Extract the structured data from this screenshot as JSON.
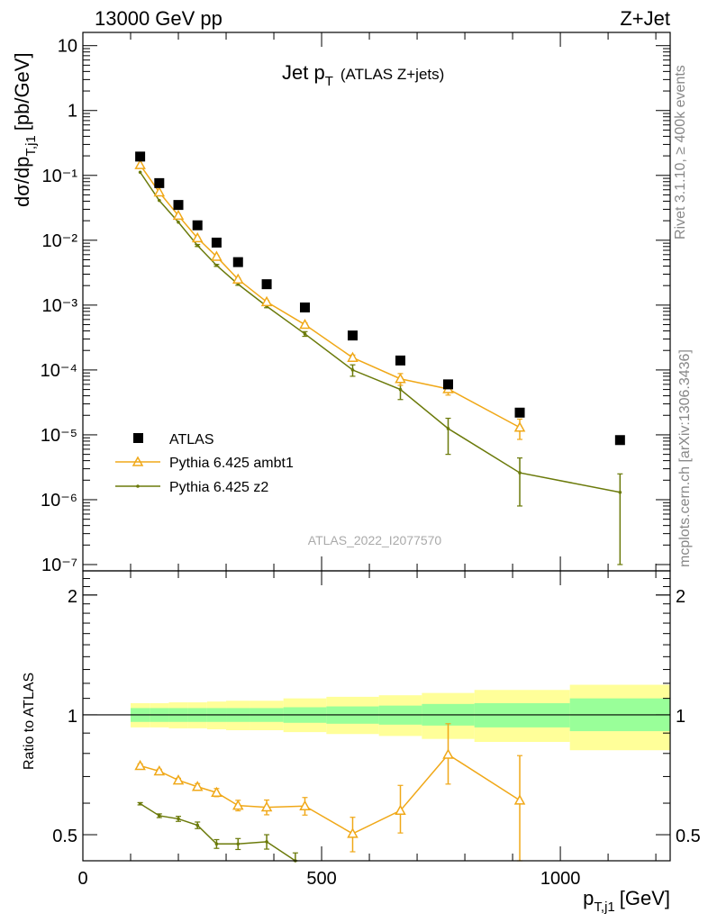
{
  "header": {
    "left": "13000 GeV pp",
    "right": "Z+Jet"
  },
  "plot_title": {
    "main": "Jet p",
    "main_sub": "T",
    "extra": "(ATLAS Z+jets)"
  },
  "side_labels": {
    "rivet": "Rivet 3.1.10, ≥ 400k events",
    "mcplots": "mcplots.cern.ch [arXiv:1306.3436]"
  },
  "analysis_id": "ATLAS_2022_I2077570",
  "legend": [
    {
      "label": "ATLAS",
      "color": "#000000",
      "marker": "square"
    },
    {
      "label": "Pythia 6.425 ambt1",
      "color": "#f0a818",
      "marker": "triangle"
    },
    {
      "label": "Pythia 6.425 z2",
      "color": "#6b7a0a",
      "marker": "dot"
    }
  ],
  "colors": {
    "data": "#000000",
    "ambt1": "#f0a818",
    "z2": "#6b7a0a",
    "band_inner": "#99ff99",
    "band_outer": "#ffff99"
  },
  "chart_data": [
    {
      "type": "scatter",
      "panel": "main",
      "ylabel": "dσ/dp",
      "ylabel_sub": "T,j1",
      "ylabel_units": "[pb/GeV]",
      "yscale": "log",
      "ylim": [
        8e-08,
        16
      ],
      "xlim": [
        0,
        1230
      ],
      "y_tick_labels": [
        "10",
        "1",
        "10⁻¹",
        "10⁻²",
        "10⁻³",
        "10⁻⁴",
        "10⁻⁵",
        "10⁻⁶",
        "10⁻⁷"
      ],
      "series": [
        {
          "name": "ATLAS",
          "x": [
            120,
            160,
            200,
            240,
            280,
            325,
            385,
            465,
            565,
            665,
            765,
            915,
            1125
          ],
          "y": [
            0.195,
            0.076,
            0.035,
            0.017,
            0.0092,
            0.0046,
            0.0021,
            0.00092,
            0.00034,
            0.00014,
            6e-05,
            2.2e-05,
            8.3e-06
          ]
        },
        {
          "name": "Pythia 6.425 ambt1",
          "x": [
            120,
            160,
            200,
            240,
            280,
            325,
            385,
            465,
            565,
            665,
            765,
            915
          ],
          "y": [
            0.145,
            0.055,
            0.024,
            0.0108,
            0.0056,
            0.0025,
            0.00112,
            0.0005,
            0.000155,
            7.3e-05,
            5.1e-05,
            1.3e-05
          ],
          "yerr_lo": [
            0.004,
            0.0015,
            0.0008,
            0.0004,
            0.0002,
            0.0001,
            5e-05,
            3e-05,
            1.5e-05,
            1.5e-05,
            1e-05,
            4.5e-06
          ],
          "yerr_hi": [
            0.004,
            0.0015,
            0.0008,
            0.0004,
            0.0002,
            0.0001,
            5e-05,
            3e-05,
            1.5e-05,
            1.5e-05,
            1e-05,
            4.5e-06
          ]
        },
        {
          "name": "Pythia 6.425 z2",
          "x": [
            120,
            160,
            200,
            240,
            280,
            325,
            385,
            465,
            565,
            665,
            765,
            915,
            1125
          ],
          "y": [
            0.112,
            0.041,
            0.019,
            0.0083,
            0.0041,
            0.0021,
            0.00096,
            0.00036,
            0.0001,
            5e-05,
            1.25e-05,
            2.6e-06,
            1.3e-06
          ],
          "yerr_lo": [
            0.003,
            0.0012,
            0.0006,
            0.0003,
            0.00015,
            8e-05,
            5e-05,
            3e-05,
            2e-05,
            1.5e-05,
            7.5e-06,
            1.8e-06,
            1.2e-06
          ],
          "yerr_hi": [
            0.003,
            0.0012,
            0.0006,
            0.0003,
            0.00015,
            8e-05,
            5e-05,
            3e-05,
            2e-05,
            1.5e-05,
            5.5e-06,
            1.8e-06,
            1.2e-06
          ]
        }
      ]
    },
    {
      "type": "line",
      "panel": "ratio",
      "ylabel": "Ratio to ATLAS",
      "xlabel": "p",
      "xlabel_sub": "T,j1",
      "xlabel_units": "[GeV]",
      "yscale": "log",
      "ylim": [
        0.43,
        2.3
      ],
      "xlim": [
        0,
        1230
      ],
      "x_ticks": [
        0,
        500,
        1000
      ],
      "y_ticks": [
        0.5,
        1,
        2
      ],
      "bands": {
        "x_edges": [
          100,
          140,
          180,
          220,
          260,
          300,
          350,
          420,
          510,
          620,
          710,
          820,
          1020,
          1230
        ],
        "inner_lo": [
          0.96,
          0.96,
          0.96,
          0.96,
          0.96,
          0.96,
          0.96,
          0.955,
          0.95,
          0.945,
          0.94,
          0.93,
          0.91
        ],
        "inner_hi": [
          1.04,
          1.04,
          1.04,
          1.04,
          1.04,
          1.04,
          1.04,
          1.045,
          1.05,
          1.055,
          1.065,
          1.07,
          1.1
        ],
        "outer_lo": [
          0.93,
          0.93,
          0.925,
          0.925,
          0.92,
          0.915,
          0.915,
          0.905,
          0.895,
          0.885,
          0.87,
          0.855,
          0.815
        ],
        "outer_hi": [
          1.07,
          1.07,
          1.075,
          1.075,
          1.08,
          1.085,
          1.085,
          1.1,
          1.11,
          1.12,
          1.135,
          1.155,
          1.19
        ]
      },
      "series": [
        {
          "name": "Pythia 6.425 ambt1",
          "x": [
            120,
            160,
            200,
            240,
            280,
            325,
            385,
            465,
            565,
            665,
            765,
            915
          ],
          "y": [
            0.745,
            0.722,
            0.685,
            0.66,
            0.638,
            0.592,
            0.586,
            0.59,
            0.503,
            0.575,
            0.795,
            0.61
          ],
          "yerr_lo": [
            0.008,
            0.008,
            0.008,
            0.012,
            0.015,
            0.018,
            0.025,
            0.03,
            0.05,
            0.07,
            0.125,
            0.2
          ],
          "yerr_hi": [
            0.008,
            0.008,
            0.008,
            0.012,
            0.015,
            0.018,
            0.025,
            0.03,
            0.05,
            0.09,
            0.155,
            0.18
          ]
        },
        {
          "name": "Pythia 6.425 z2",
          "x": [
            120,
            160,
            200,
            240,
            280,
            325,
            385,
            445
          ],
          "y": [
            0.598,
            0.558,
            0.548,
            0.528,
            0.474,
            0.474,
            0.48,
            0.43
          ],
          "yerr_lo": [
            0.004,
            0.006,
            0.008,
            0.01,
            0.012,
            0.015,
            0.02,
            0.02
          ],
          "yerr_hi": [
            0.004,
            0.006,
            0.008,
            0.01,
            0.012,
            0.015,
            0.02,
            0.02
          ]
        }
      ]
    }
  ]
}
